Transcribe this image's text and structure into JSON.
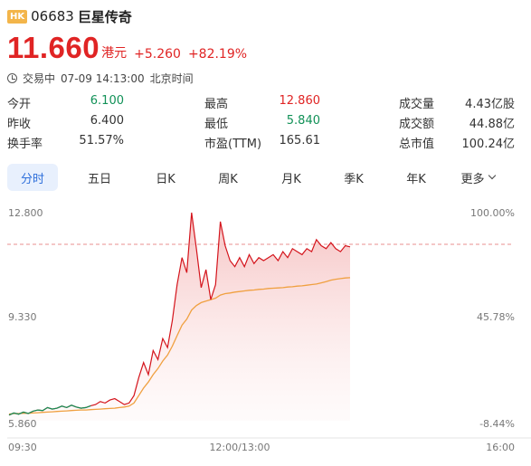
{
  "header": {
    "market_badge": "HK",
    "code": "06683",
    "name": "巨星传奇"
  },
  "quote": {
    "price": "11.660",
    "currency": "港元",
    "change": "+5.260",
    "change_pct": "+82.19%"
  },
  "status": {
    "state": "交易中",
    "datetime": "07-09 14:13:00",
    "timezone": "北京时间"
  },
  "stats": [
    [
      {
        "label": "今开",
        "value": "6.100",
        "color": "green"
      },
      {
        "label": "最高",
        "value": "12.860",
        "color": "red"
      },
      {
        "label": "成交量",
        "value": "4.43亿股",
        "color": "dark"
      }
    ],
    [
      {
        "label": "昨收",
        "value": "6.400",
        "color": "dark"
      },
      {
        "label": "最低",
        "value": "5.840",
        "color": "green"
      },
      {
        "label": "成交额",
        "value": "44.88亿",
        "color": "dark"
      }
    ],
    [
      {
        "label": "换手率",
        "value": "51.57%",
        "color": "dark"
      },
      {
        "label": "市盈(TTM)",
        "value": "165.61",
        "color": "dark"
      },
      {
        "label": "总市值",
        "value": "100.24亿",
        "color": "dark"
      }
    ]
  ],
  "tabs": [
    "分时",
    "五日",
    "日K",
    "周K",
    "月K",
    "季K",
    "年K",
    "更多"
  ],
  "active_tab": "分时",
  "colors": {
    "up": "#e02424",
    "down": "#119157",
    "avg_line": "#f0a040",
    "accent": "#2e6fdb"
  },
  "chart_data": {
    "type": "line",
    "y_left_labels": [
      "12.800",
      "9.330",
      "5.860"
    ],
    "y_right_labels": [
      "100.00%",
      "45.78%",
      "-8.44%"
    ],
    "x_labels": [
      "09:30",
      "12:00/13:00",
      "16:00"
    ],
    "ylim": [
      5.86,
      12.8
    ],
    "prev_close": 6.4,
    "series": [
      {
        "values": [
          6.05,
          6.12,
          6.08,
          6.15,
          6.1,
          6.18,
          6.22,
          6.2,
          6.3,
          6.25,
          6.28,
          6.35,
          6.3,
          6.38,
          6.32,
          6.28,
          6.3,
          6.36,
          6.4,
          6.5,
          6.45,
          6.55,
          6.6,
          6.5,
          6.4,
          6.45,
          6.7,
          7.3,
          7.8,
          7.4,
          8.2,
          7.9,
          8.6,
          8.3,
          9.2,
          10.4,
          11.3,
          10.8,
          12.8,
          11.6,
          10.3,
          10.9,
          9.9,
          10.4,
          12.5,
          11.7,
          11.2,
          11.0,
          11.3,
          11.0,
          11.4,
          11.1,
          11.3,
          11.2,
          11.3,
          11.4,
          11.2,
          11.5,
          11.3,
          11.6,
          11.5,
          11.4,
          11.6,
          11.5,
          11.9,
          11.7,
          11.6,
          11.8,
          11.6,
          11.5,
          11.7,
          11.66
        ]
      },
      {
        "values": [
          6.08,
          6.1,
          6.1,
          6.11,
          6.11,
          6.12,
          6.13,
          6.14,
          6.15,
          6.16,
          6.17,
          6.18,
          6.19,
          6.2,
          6.21,
          6.22,
          6.22,
          6.23,
          6.24,
          6.25,
          6.26,
          6.27,
          6.28,
          6.3,
          6.32,
          6.35,
          6.45,
          6.7,
          6.95,
          7.15,
          7.4,
          7.6,
          7.85,
          8.05,
          8.35,
          8.7,
          9.05,
          9.25,
          9.55,
          9.7,
          9.8,
          9.85,
          9.9,
          9.95,
          10.05,
          10.1,
          10.12,
          10.15,
          10.17,
          10.19,
          10.21,
          10.22,
          10.24,
          10.25,
          10.27,
          10.28,
          10.29,
          10.3,
          10.32,
          10.33,
          10.35,
          10.36,
          10.38,
          10.4,
          10.42,
          10.46,
          10.5,
          10.55,
          10.58,
          10.6,
          10.62,
          10.63
        ]
      }
    ]
  }
}
